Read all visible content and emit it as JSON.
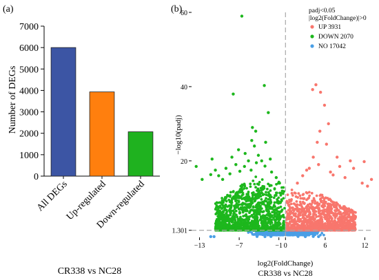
{
  "panels": {
    "a": {
      "label": "(a)"
    },
    "b": {
      "label": "(b)"
    }
  },
  "chart_data": [
    {
      "type": "bar",
      "panel": "a",
      "categories": [
        "All DEGs",
        "Up-regulated",
        "Down-regulated"
      ],
      "values": [
        6001,
        3931,
        2070
      ],
      "colors": [
        "#3c55a4",
        "#ff7f0e",
        "#1fb21f"
      ],
      "ylabel": "Number of DEGs",
      "xlabel": "CR338 vs NC28",
      "ylim": [
        0,
        7000
      ],
      "yticks": [
        0,
        1000,
        2000,
        3000,
        4000,
        5000,
        6000,
        7000
      ],
      "grid": false
    },
    {
      "type": "scatter",
      "panel": "b",
      "xlabel": "log2(FoldChange)",
      "ylabel": "−log10(padj)",
      "caption": "CR338 vs NC28",
      "xlim": [
        -14.2,
        13.2
      ],
      "ylim": [
        -0.6,
        60
      ],
      "xticks": [
        -13,
        -7,
        -1,
        0,
        6,
        12
      ],
      "xtick_labels": [
        "−13",
        "−7",
        "−1",
        "0",
        "6",
        "12"
      ],
      "yticks": [
        1.301,
        20,
        40,
        60
      ],
      "ytick_labels": [
        "1.301",
        "20",
        "40",
        "60"
      ],
      "thresholds": {
        "padj_line": 1.301,
        "fc_line": 0
      },
      "legend": {
        "position": "top-right",
        "title_lines": [
          "padj<0.05",
          "|log2(FoldChange)|>0"
        ],
        "entries": [
          {
            "name": "UP 3931",
            "color": "#f8766d"
          },
          {
            "name": "DOWN 2070",
            "color": "#1db71d"
          },
          {
            "name": "NO 17042",
            "color": "#4a9fe6"
          }
        ]
      },
      "series": [
        {
          "name": "UP",
          "color": "#f8766d",
          "points": [
            [
              4.6,
              40.5
            ],
            [
              4.1,
              39.2
            ],
            [
              5.3,
              38.5
            ],
            [
              5.9,
              35.0
            ],
            [
              6.5,
              30.0
            ],
            [
              5.2,
              28.0
            ],
            [
              4.8,
              25.0
            ],
            [
              6.2,
              24.5
            ],
            [
              7.8,
              21.0
            ],
            [
              9.8,
              20.0
            ],
            [
              11.9,
              19.8
            ],
            [
              8.2,
              18.5
            ],
            [
              10.3,
              18.0
            ],
            [
              3.2,
              17.5
            ],
            [
              6.8,
              17.0
            ],
            [
              13.0,
              15.0
            ],
            [
              11.6,
              14.0
            ],
            [
              4.2,
              21.0
            ],
            [
              3.6,
              18.0
            ],
            [
              2.6,
              16.0
            ],
            [
              5.0,
              19.0
            ],
            [
              7.2,
              16.2
            ],
            [
              9.0,
              15.5
            ],
            [
              12.4,
              13.2
            ],
            [
              1.8,
              14.0
            ]
          ]
        },
        {
          "name": "DOWN",
          "color": "#1db71d",
          "points": [
            [
              -6.6,
              59.0
            ],
            [
              -7.9,
              38.0
            ],
            [
              -3.2,
              40.3
            ],
            [
              -5.0,
              29.0
            ],
            [
              -4.5,
              28.0
            ],
            [
              -2.6,
              33.0
            ],
            [
              -3.0,
              25.0
            ],
            [
              -2.3,
              20.5
            ],
            [
              -4.7,
              24.0
            ],
            [
              -5.1,
              25.5
            ],
            [
              -6.1,
              22.0
            ],
            [
              -5.6,
              20.0
            ],
            [
              -4.1,
              21.5
            ],
            [
              -3.6,
              20.0
            ],
            [
              -7.1,
              23.0
            ],
            [
              -7.5,
              19.0
            ],
            [
              -8.1,
              21.0
            ],
            [
              -9.0,
              18.0
            ],
            [
              -10.6,
              17.5
            ],
            [
              -11.3,
              16.3
            ],
            [
              -13.5,
              18.5
            ],
            [
              -12.6,
              15.0
            ],
            [
              -11.1,
              20.5
            ],
            [
              -10.1,
              16.0
            ],
            [
              -9.5,
              15.0
            ],
            [
              -6.2,
              18.5
            ],
            [
              -5.2,
              17.5
            ],
            [
              -4.4,
              19.5
            ],
            [
              -3.1,
              18.6
            ],
            [
              -2.1,
              17.0
            ],
            [
              -1.4,
              15.5
            ],
            [
              -0.9,
              14.0
            ],
            [
              -6.9,
              17.2
            ],
            [
              -8.4,
              16.5
            ]
          ]
        },
        {
          "name": "NO",
          "color": "#4a9fe6",
          "points": [
            [
              -11.3,
              -0.4
            ],
            [
              -10.8,
              -0.4
            ],
            [
              -4.3,
              -0.35
            ],
            [
              -3.1,
              -0.4
            ],
            [
              -2.2,
              -0.35
            ],
            [
              1.9,
              -0.35
            ],
            [
              3.0,
              -0.4
            ],
            [
              4.2,
              -0.35
            ],
            [
              5.0,
              -0.4
            ]
          ]
        }
      ]
    }
  ]
}
